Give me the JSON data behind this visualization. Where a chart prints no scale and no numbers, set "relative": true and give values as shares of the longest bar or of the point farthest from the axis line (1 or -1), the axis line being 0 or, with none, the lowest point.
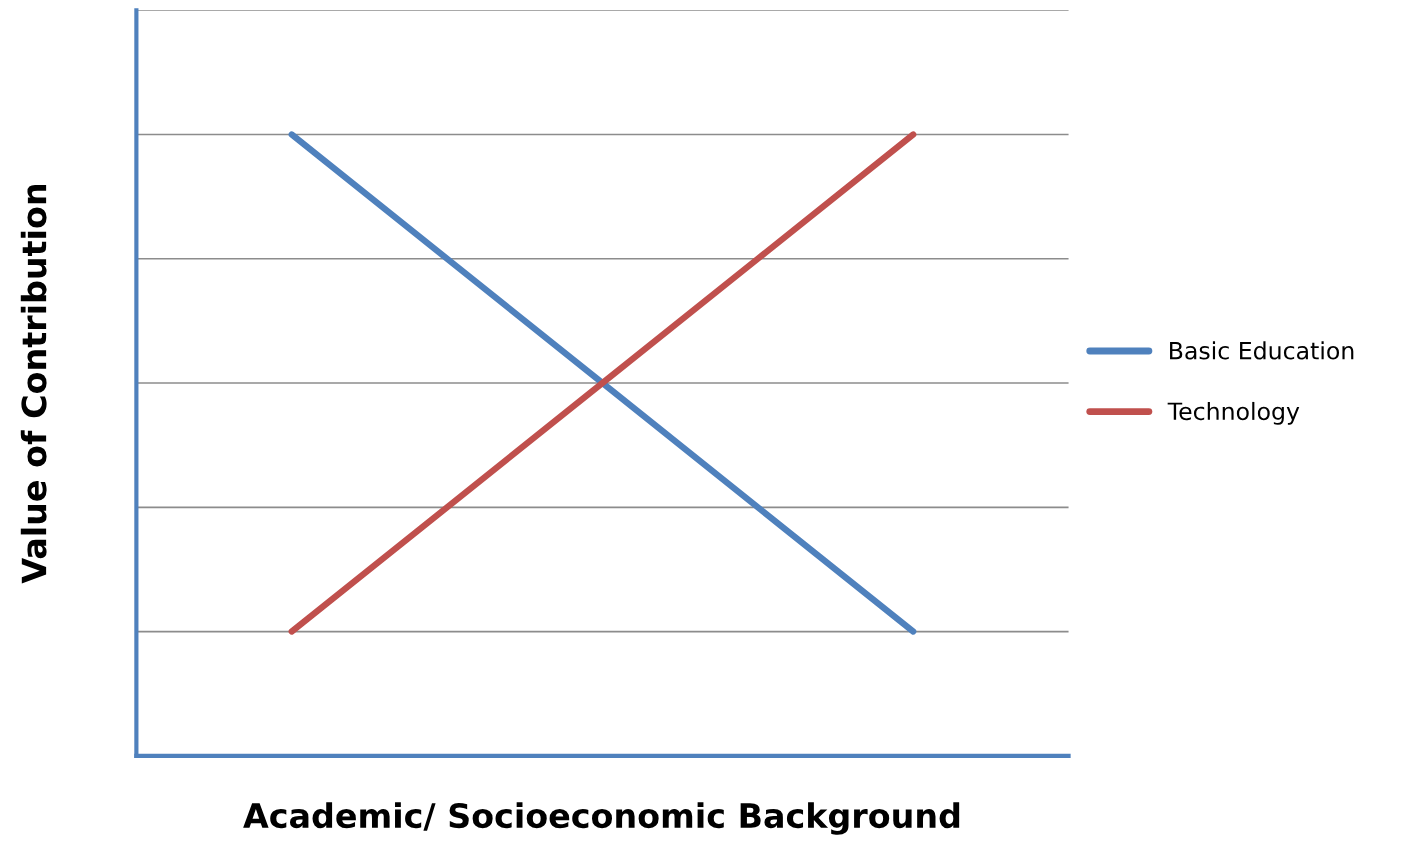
{
  "chart_data": {
    "type": "line",
    "relative": true,
    "xlabel": "Academic/ Socioeconomic Background",
    "ylabel": "Value of Contribution",
    "categories": [
      null,
      null,
      null
    ],
    "series": [
      {
        "name": "Basic Education",
        "color": "#4f81bd",
        "values": [
          1,
          0.6,
          0.2
        ]
      },
      {
        "name": "Technology",
        "color": "#c0504d",
        "values": [
          0.2,
          0.6,
          1
        ]
      }
    ],
    "grid": "y",
    "legend": "right",
    "marker": "none",
    "line_style": "solid"
  }
}
